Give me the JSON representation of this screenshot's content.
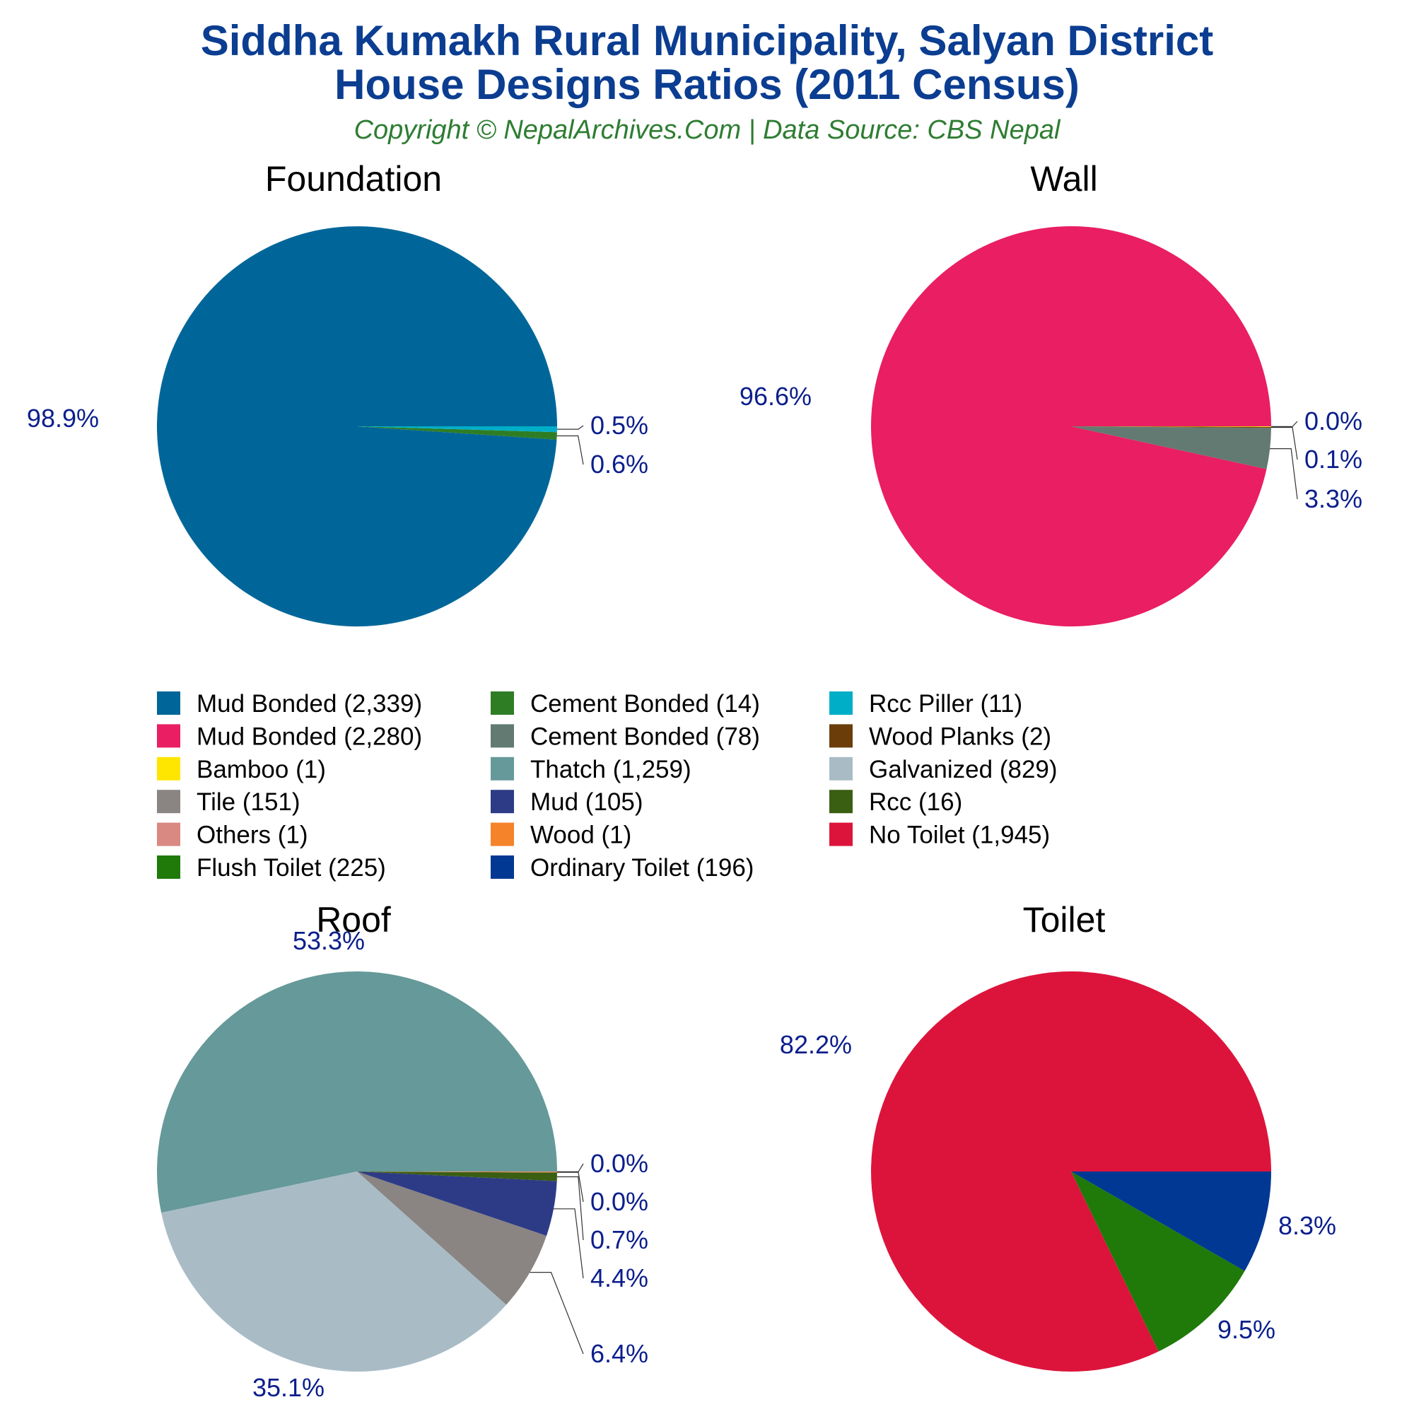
{
  "title_line1": "Siddha Kumakh Rural Municipality, Salyan District",
  "title_line2": "House Designs Ratios (2011 Census)",
  "subtitle": "Copyright © NepalArchives.Com | Data Source: CBS Nepal",
  "chart_data": [
    {
      "type": "pie",
      "title": "Foundation",
      "slices": [
        {
          "label": "Mud Bonded",
          "value": 2339,
          "pct_label": "98.9%",
          "color": "#006699"
        },
        {
          "label": "Cement Bonded",
          "value": 14,
          "pct_label": "0.6%",
          "color": "#2e7d24"
        },
        {
          "label": "Rcc Piller",
          "value": 11,
          "pct_label": "0.5%",
          "color": "#00aec7"
        }
      ]
    },
    {
      "type": "pie",
      "title": "Wall",
      "slices": [
        {
          "label": "Mud Bonded",
          "value": 2280,
          "pct_label": "96.6%",
          "color": "#e91e63"
        },
        {
          "label": "Cement Bonded",
          "value": 78,
          "pct_label": "3.3%",
          "color": "#637a72"
        },
        {
          "label": "Wood Planks",
          "value": 2,
          "pct_label": "0.1%",
          "color": "#6b3e09"
        },
        {
          "label": "Bamboo",
          "value": 1,
          "pct_label": "0.0%",
          "color": "#ffe600"
        }
      ]
    },
    {
      "type": "pie",
      "title": "Roof",
      "slices": [
        {
          "label": "Thatch",
          "value": 1259,
          "pct_label": "53.3%",
          "color": "#669999"
        },
        {
          "label": "Galvanized",
          "value": 829,
          "pct_label": "35.1%",
          "color": "#a9bcc6"
        },
        {
          "label": "Tile",
          "value": 151,
          "pct_label": "6.4%",
          "color": "#8a8582"
        },
        {
          "label": "Mud",
          "value": 105,
          "pct_label": "4.4%",
          "color": "#2d3b87"
        },
        {
          "label": "Rcc",
          "value": 16,
          "pct_label": "0.7%",
          "color": "#3a5e12"
        },
        {
          "label": "Wood",
          "value": 1,
          "pct_label": "0.0%",
          "color": "#f5832a"
        },
        {
          "label": "Others",
          "value": 1,
          "pct_label": "0.0%",
          "color": "#d98882"
        }
      ]
    },
    {
      "type": "pie",
      "title": "Toilet",
      "slices": [
        {
          "label": "No Toilet",
          "value": 1945,
          "pct_label": "82.2%",
          "color": "#dc143c"
        },
        {
          "label": "Flush Toilet",
          "value": 225,
          "pct_label": "9.5%",
          "color": "#1f7a0a"
        },
        {
          "label": "Ordinary Toilet",
          "value": 196,
          "pct_label": "8.3%",
          "color": "#003893"
        }
      ]
    }
  ],
  "legend": [
    [
      "Mud Bonded (2,339)",
      "Cement Bonded (14)",
      "Rcc Piller (11)"
    ],
    [
      "Mud Bonded (2,280)",
      "Cement Bonded (78)",
      "Wood Planks (2)"
    ],
    [
      "Bamboo (1)",
      "Thatch (1,259)",
      "Galvanized (829)"
    ],
    [
      "Tile (151)",
      "Mud (105)",
      "Rcc (16)"
    ],
    [
      "Others (1)",
      "Wood (1)",
      "No Toilet (1,945)"
    ],
    [
      "Flush Toilet (225)",
      "Ordinary Toilet (196)"
    ]
  ],
  "legend_colors": [
    [
      "#006699",
      "#2e7d24",
      "#00aec7"
    ],
    [
      "#e91e63",
      "#637a72",
      "#6b3e09"
    ],
    [
      "#ffe600",
      "#669999",
      "#a9bcc6"
    ],
    [
      "#8a8582",
      "#2d3b87",
      "#3a5e12"
    ],
    [
      "#d98882",
      "#f5832a",
      "#dc143c"
    ],
    [
      "#1f7a0a",
      "#003893"
    ]
  ]
}
